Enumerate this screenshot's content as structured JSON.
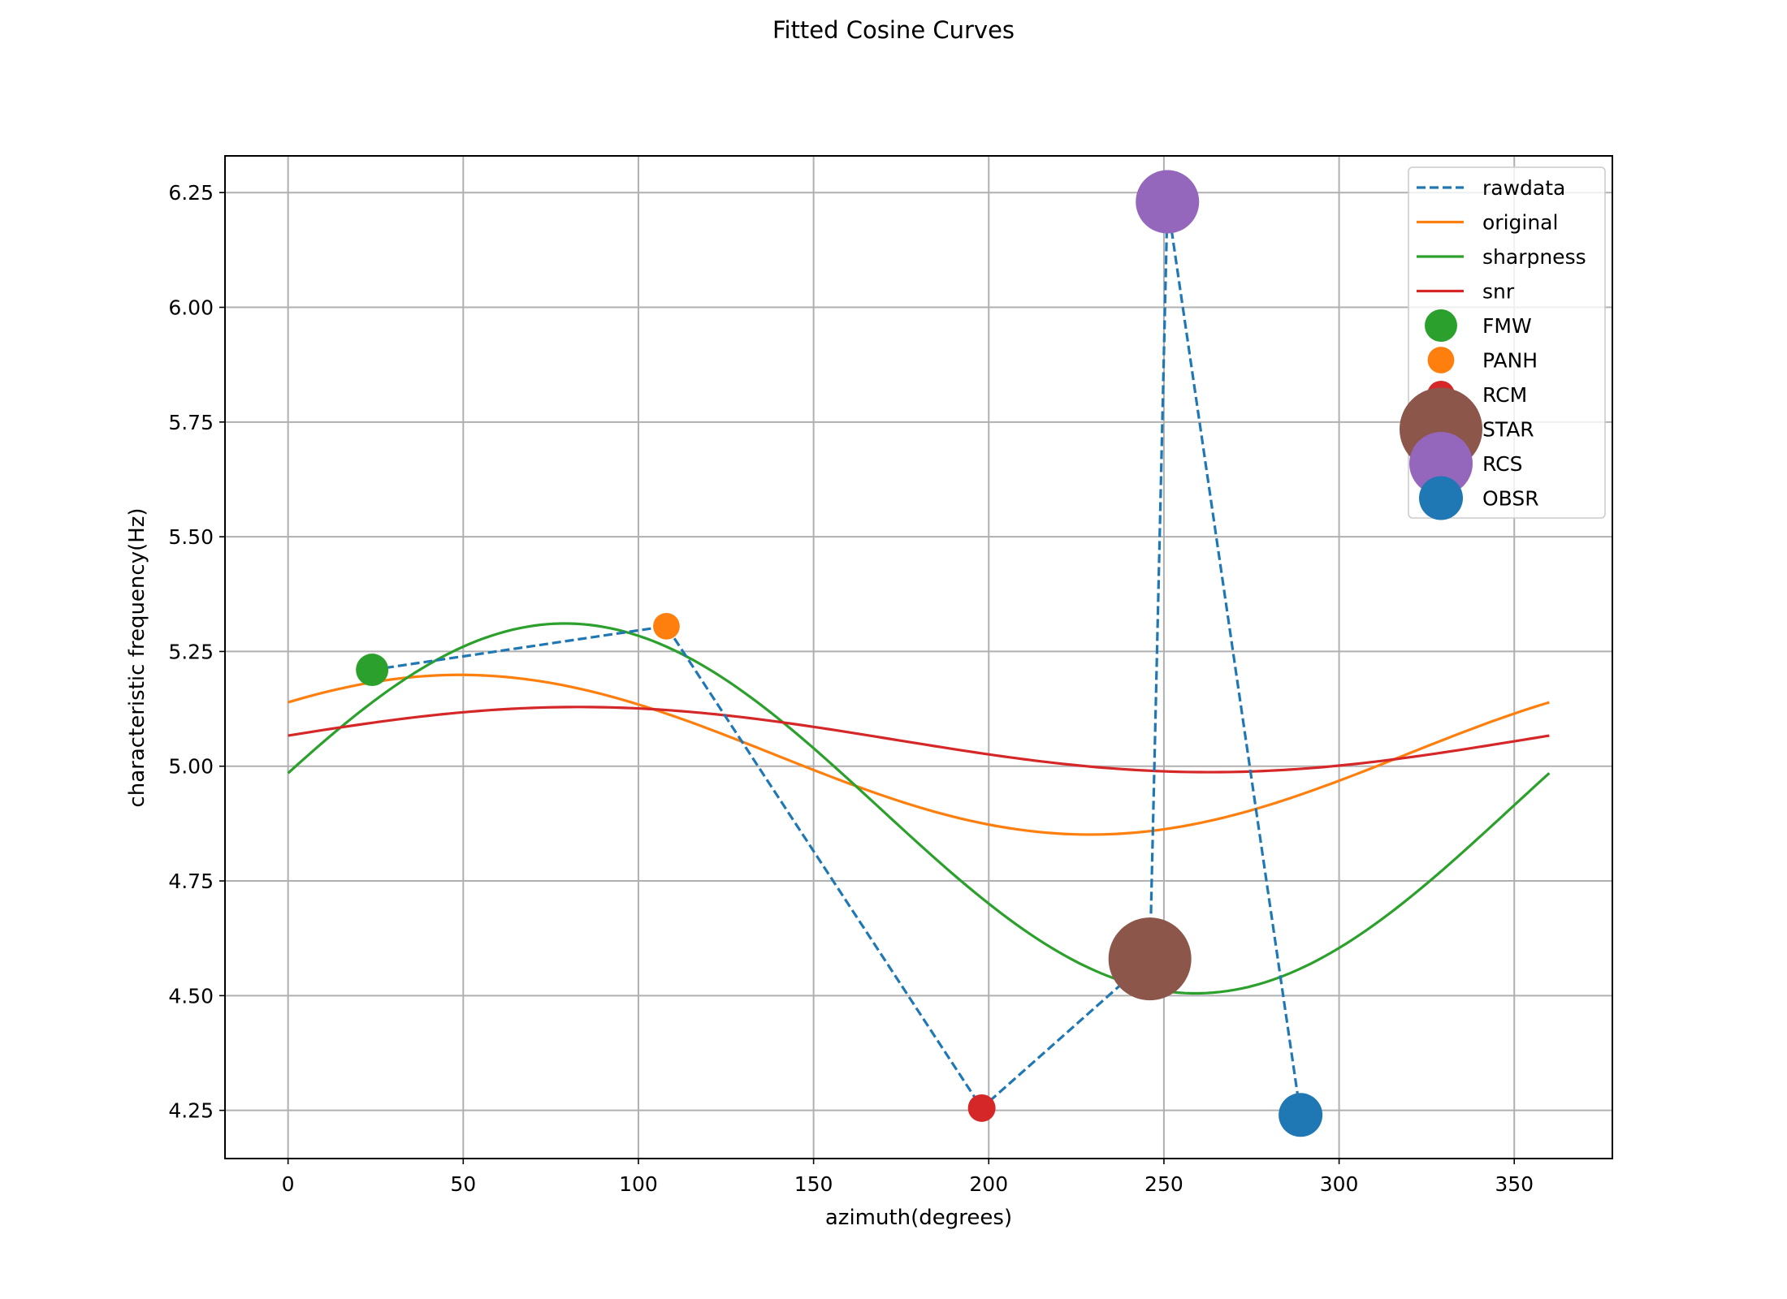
{
  "chart_data": {
    "type": "line",
    "title": "Fitted Cosine Curves",
    "xlabel": "azimuth(degrees)",
    "ylabel": "characteristic frequency(Hz)",
    "xlim": [
      -18,
      378
    ],
    "ylim": [
      4.145,
      6.33
    ],
    "xticks": [
      0,
      50,
      100,
      150,
      200,
      250,
      300,
      350
    ],
    "yticks": [
      4.25,
      4.5,
      4.75,
      5.0,
      5.25,
      5.5,
      5.75,
      6.0,
      6.25
    ],
    "ytick_labels": [
      "4.25",
      "4.50",
      "4.75",
      "5.00",
      "5.25",
      "5.50",
      "5.75",
      "6.00",
      "6.25"
    ],
    "grid": true,
    "legend_position": "top-right",
    "colors": {
      "blue": "#1f77b4",
      "orange": "#ff7f0e",
      "green": "#2ca02c",
      "red": "#d62728",
      "purple": "#9467bd",
      "brown": "#8c564b",
      "grid": "#b0b0b0"
    },
    "rawdata": {
      "name": "rawdata",
      "style": "dashed",
      "color": "#1f77b4",
      "x": [
        24,
        108,
        198,
        246,
        251,
        289
      ],
      "y": [
        5.21,
        5.305,
        4.255,
        4.58,
        6.23,
        4.24
      ]
    },
    "curves": [
      {
        "name": "original",
        "color": "#ff7f0e",
        "mean": 5.025,
        "amplitude": 0.174,
        "phase_deg": 49
      },
      {
        "name": "sharpness",
        "color": "#2ca02c",
        "mean": 4.908,
        "amplitude": 0.403,
        "phase_deg": 79
      },
      {
        "name": "snr",
        "color": "#d62728",
        "mean": 5.058,
        "amplitude": 0.071,
        "phase_deg": 83
      }
    ],
    "stations": [
      {
        "name": "FMW",
        "x": 24,
        "y": 5.21,
        "color": "#2ca02c",
        "size": 1.0
      },
      {
        "name": "PANH",
        "x": 108,
        "y": 5.305,
        "color": "#ff7f0e",
        "size": 0.82
      },
      {
        "name": "RCM",
        "x": 198,
        "y": 4.255,
        "color": "#d62728",
        "size": 0.85
      },
      {
        "name": "STAR",
        "x": 246,
        "y": 4.58,
        "color": "#8c564b",
        "size": 2.55
      },
      {
        "name": "RCS",
        "x": 251,
        "y": 6.23,
        "color": "#9467bd",
        "size": 1.95
      },
      {
        "name": "OBSR",
        "x": 289,
        "y": 4.24,
        "color": "#1f77b4",
        "size": 1.35
      }
    ]
  }
}
